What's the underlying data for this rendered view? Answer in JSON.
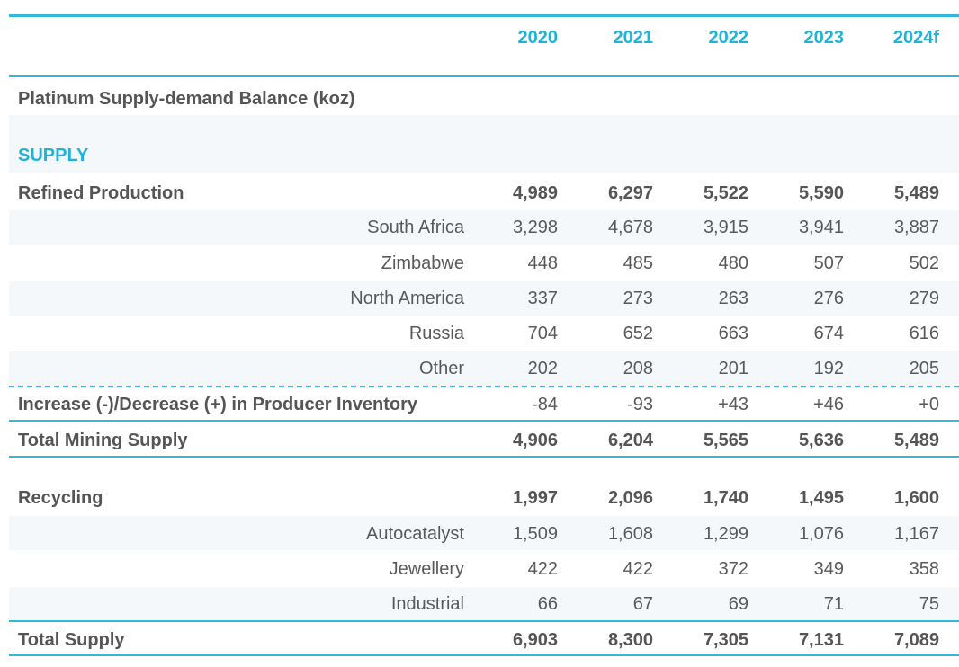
{
  "columns": [
    "2020",
    "2021",
    "2022",
    "2023",
    "2024f"
  ],
  "title": "Platinum Supply-demand Balance (koz)",
  "section_supply": "SUPPLY",
  "rows": [
    {
      "label": "Refined Production",
      "values": [
        "4,989",
        "6,297",
        "5,522",
        "5,590",
        "5,489"
      ]
    },
    {
      "label": "South Africa",
      "values": [
        "3,298",
        "4,678",
        "3,915",
        "3,941",
        "3,887"
      ]
    },
    {
      "label": "Zimbabwe",
      "values": [
        "448",
        "485",
        "480",
        "507",
        "502"
      ]
    },
    {
      "label": "North America",
      "values": [
        "337",
        "273",
        "263",
        "276",
        "279"
      ]
    },
    {
      "label": "Russia",
      "values": [
        "704",
        "652",
        "663",
        "674",
        "616"
      ]
    },
    {
      "label": "Other",
      "values": [
        "202",
        "208",
        "201",
        "192",
        "205"
      ]
    },
    {
      "label": "Increase (-)/Decrease (+) in Producer Inventory",
      "values": [
        "-84",
        "-93",
        "+43",
        "+46",
        "+0"
      ]
    },
    {
      "label": "Total Mining Supply",
      "values": [
        "4,906",
        "6,204",
        "5,565",
        "5,636",
        "5,489"
      ]
    },
    {
      "label": "Recycling",
      "values": [
        "1,997",
        "2,096",
        "1,740",
        "1,495",
        "1,600"
      ]
    },
    {
      "label": "Autocatalyst",
      "values": [
        "1,509",
        "1,608",
        "1,299",
        "1,076",
        "1,167"
      ]
    },
    {
      "label": "Jewellery",
      "values": [
        "422",
        "422",
        "372",
        "349",
        "358"
      ]
    },
    {
      "label": "Industrial",
      "values": [
        "66",
        "67",
        "69",
        "71",
        "75"
      ]
    },
    {
      "label": "Total Supply",
      "values": [
        "6,903",
        "8,300",
        "7,305",
        "7,131",
        "7,089"
      ]
    }
  ]
}
